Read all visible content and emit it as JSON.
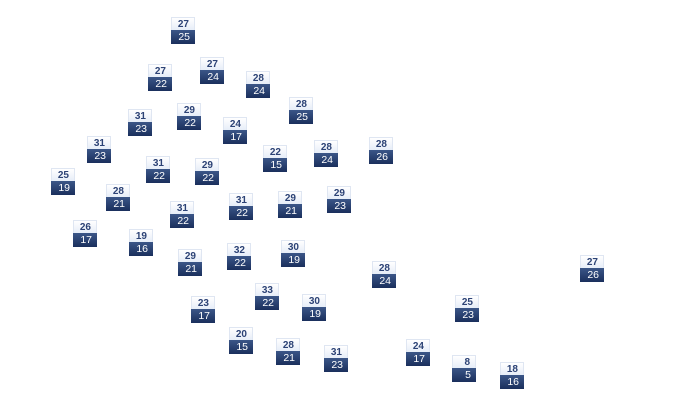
{
  "map": {
    "accent_dark": "#1f3565",
    "accent_light": "#eef3fb",
    "markers": [
      {
        "high": "27",
        "low": "25"
      },
      {
        "high": "27",
        "low": "22"
      },
      {
        "high": "27",
        "low": "24"
      },
      {
        "high": "28",
        "low": "24"
      },
      {
        "high": "28",
        "low": "25"
      },
      {
        "high": "31",
        "low": "23"
      },
      {
        "high": "29",
        "low": "22"
      },
      {
        "high": "24",
        "low": "17"
      },
      {
        "high": "31",
        "low": "23"
      },
      {
        "high": "31",
        "low": "22"
      },
      {
        "high": "29",
        "low": "22"
      },
      {
        "high": "22",
        "low": "15"
      },
      {
        "high": "28",
        "low": "24"
      },
      {
        "high": "28",
        "low": "26"
      },
      {
        "high": "25",
        "low": "19"
      },
      {
        "high": "28",
        "low": "21"
      },
      {
        "high": "31",
        "low": "22"
      },
      {
        "high": "31",
        "low": "22"
      },
      {
        "high": "29",
        "low": "21"
      },
      {
        "high": "29",
        "low": "23"
      },
      {
        "high": "26",
        "low": "17"
      },
      {
        "high": "19",
        "low": "16"
      },
      {
        "high": "29",
        "low": "21"
      },
      {
        "high": "32",
        "low": "22"
      },
      {
        "high": "30",
        "low": "19"
      },
      {
        "high": "28",
        "low": "24"
      },
      {
        "high": "27",
        "low": "26"
      },
      {
        "high": "33",
        "low": "22"
      },
      {
        "high": "30",
        "low": "19"
      },
      {
        "high": "25",
        "low": "23"
      },
      {
        "high": "23",
        "low": "17"
      },
      {
        "high": "20",
        "low": "15"
      },
      {
        "high": "28",
        "low": "21"
      },
      {
        "high": "31",
        "low": "23"
      },
      {
        "high": "24",
        "low": "17"
      },
      {
        "high": "8",
        "low": "5"
      },
      {
        "high": "18",
        "low": "16"
      }
    ]
  }
}
